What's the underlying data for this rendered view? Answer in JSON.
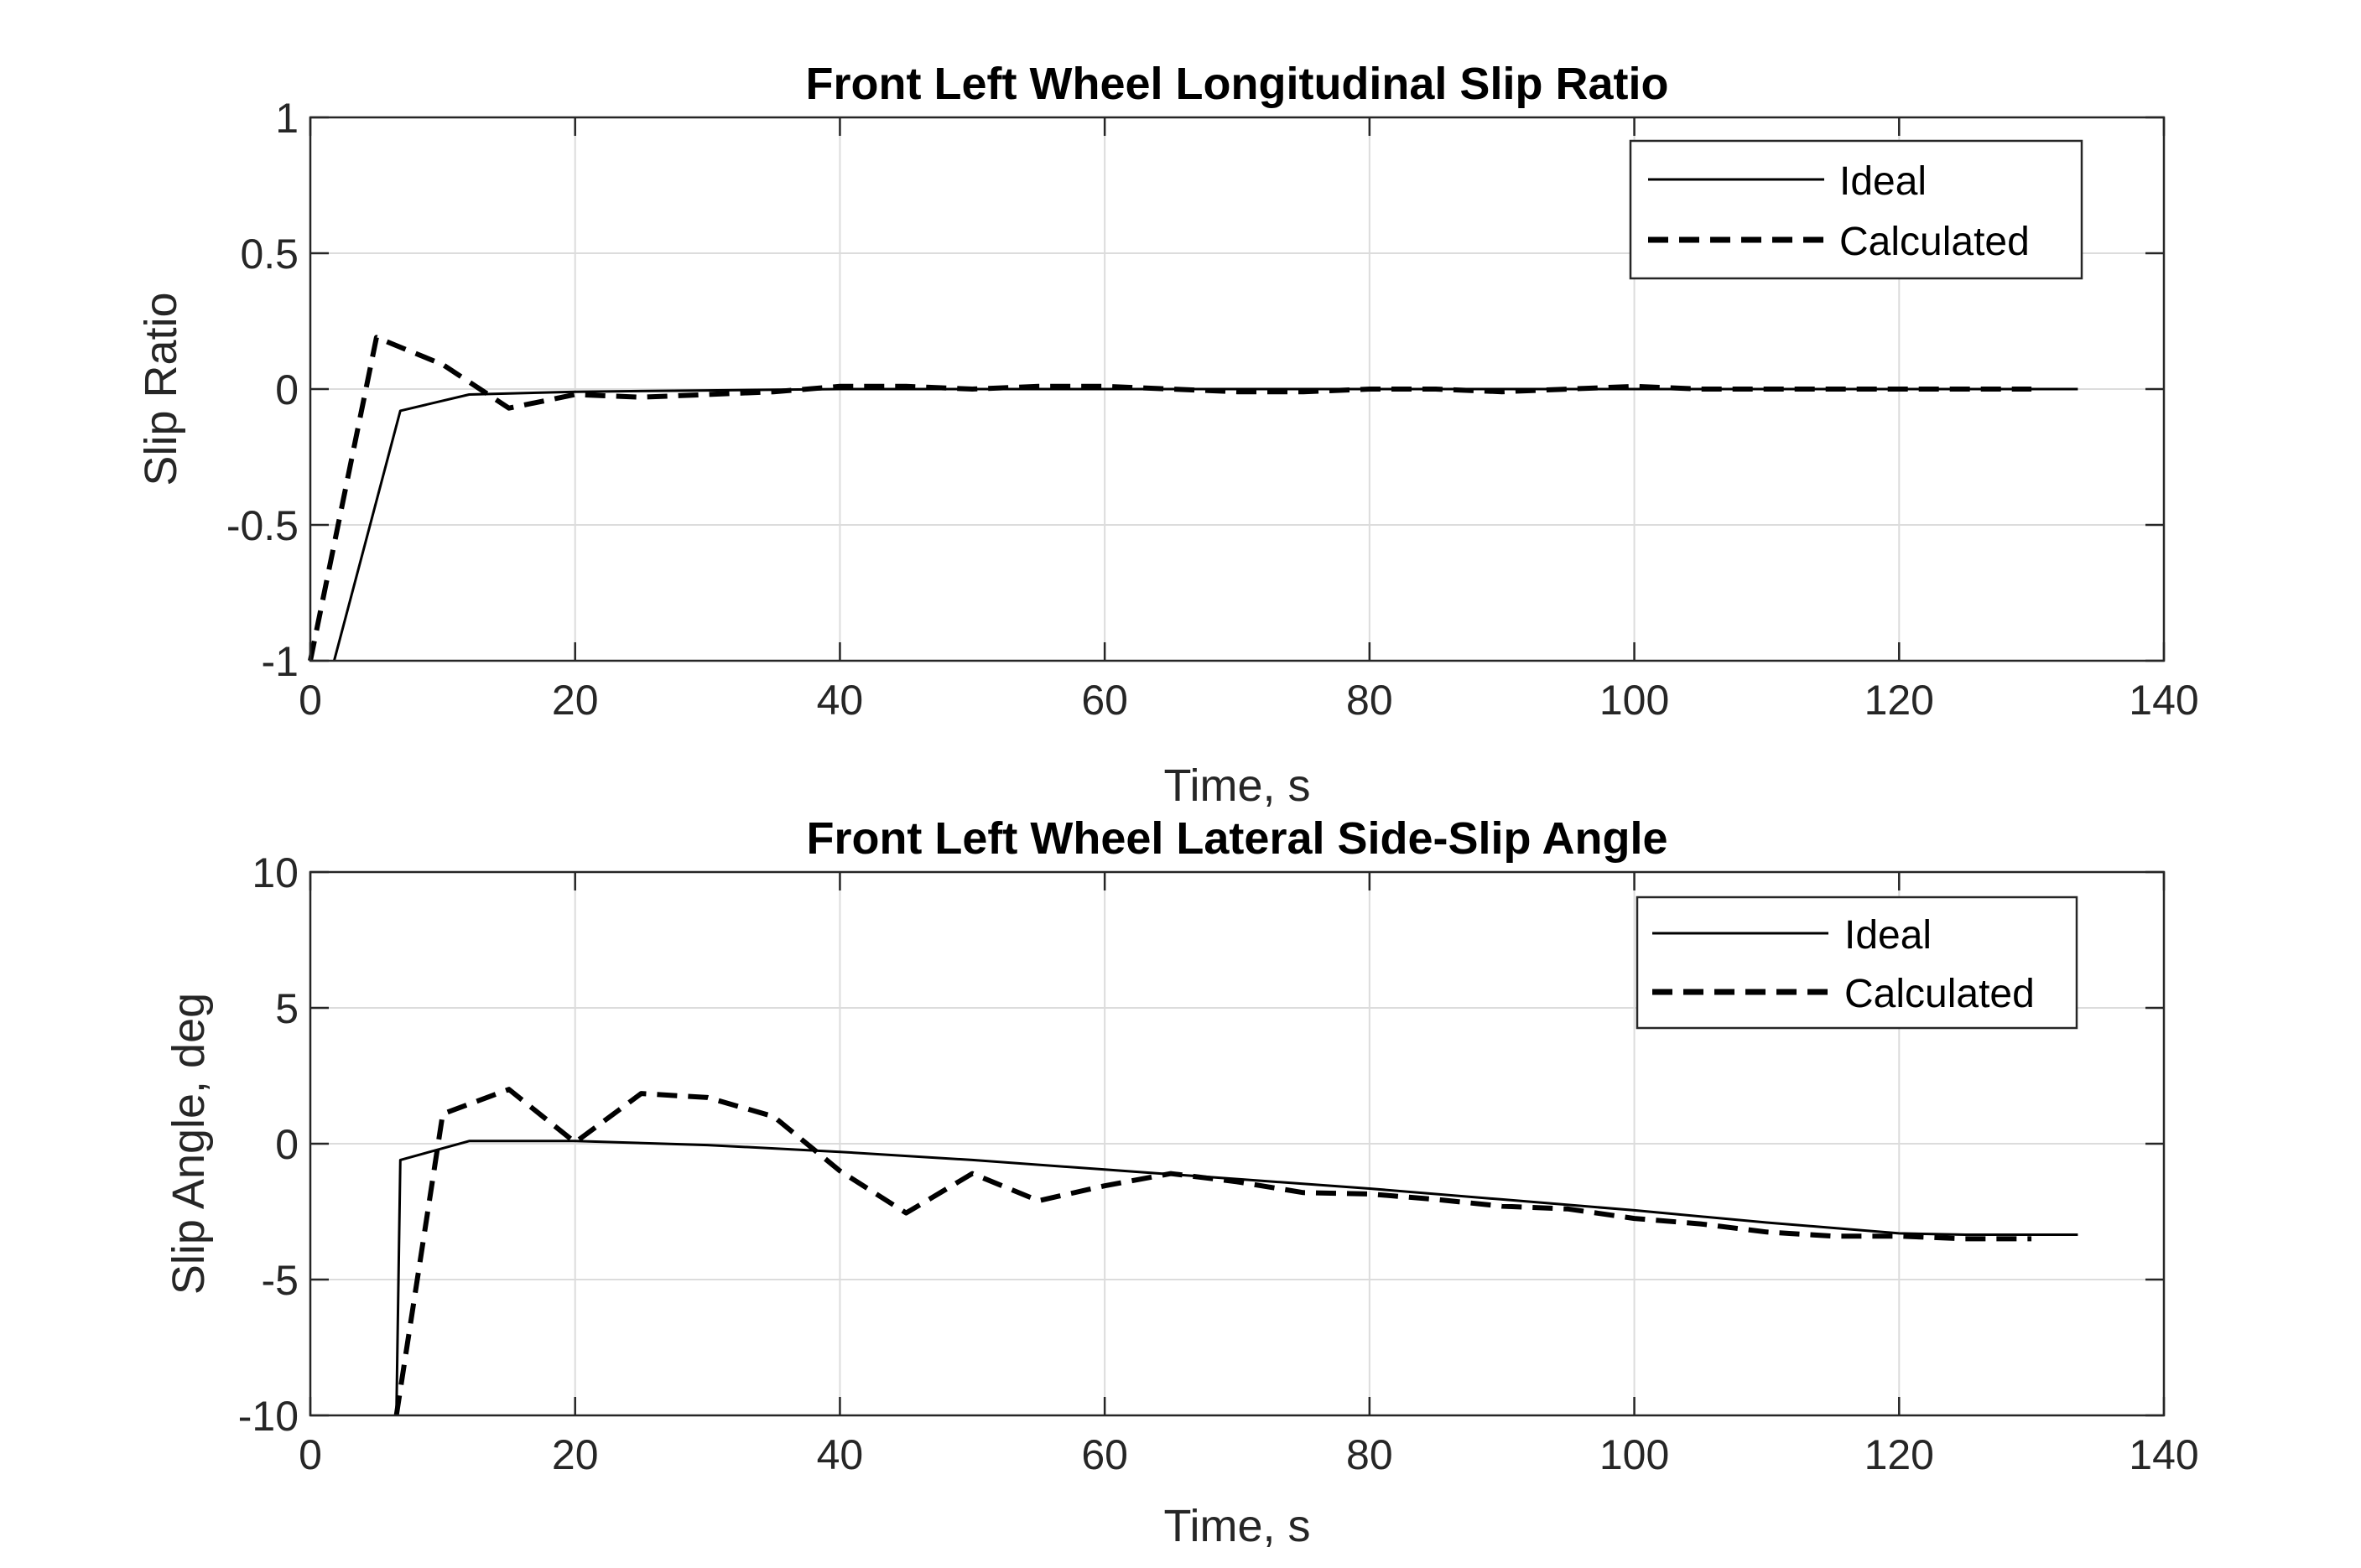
{
  "chart_data": [
    {
      "type": "line",
      "title": "Front Left Wheel Longitudinal Slip Ratio",
      "xlabel": "Time, s",
      "ylabel": "Slip Ratio",
      "xlim": [
        0,
        140
      ],
      "ylim": [
        -1,
        1
      ],
      "xticks": [
        0,
        20,
        40,
        60,
        80,
        100,
        120,
        140
      ],
      "yticks": [
        -1,
        -0.5,
        0,
        0.5,
        1
      ],
      "ytick_labels": [
        "-1",
        "-0.5",
        "0",
        "0.5",
        "1"
      ],
      "grid": true,
      "legend": "top-right",
      "series": [
        {
          "name": "Ideal",
          "style": "solid",
          "color": "#000000",
          "x": [
            1.8,
            6.8,
            12,
            20,
            30,
            40,
            50,
            60,
            70,
            80,
            90,
            100,
            110,
            120,
            130,
            133.5
          ],
          "y": [
            -1,
            -0.08,
            -0.02,
            -0.01,
            -0.005,
            0,
            0,
            0,
            0,
            0,
            0,
            0,
            0,
            0,
            0,
            0
          ]
        },
        {
          "name": "Calculated",
          "style": "dashed",
          "color": "#000000",
          "x": [
            0,
            5,
            10,
            15,
            20,
            25,
            30,
            35,
            40,
            45,
            50,
            55,
            60,
            65,
            70,
            75,
            80,
            85,
            90,
            95,
            100,
            105,
            110,
            115,
            120,
            125,
            130
          ],
          "y": [
            -1,
            0.19,
            0.09,
            -0.07,
            -0.02,
            -0.03,
            -0.02,
            -0.01,
            0.01,
            0.01,
            0,
            0.01,
            0.01,
            0,
            -0.01,
            -0.01,
            0,
            0,
            -0.01,
            0,
            0.01,
            0,
            0,
            0,
            0,
            0,
            0
          ]
        }
      ]
    },
    {
      "type": "line",
      "title": "Front Left Wheel Lateral Side-Slip Angle",
      "xlabel": "Time, s",
      "ylabel": "Slip Angle, deg",
      "xlim": [
        0,
        140
      ],
      "ylim": [
        -10,
        10
      ],
      "xticks": [
        0,
        20,
        40,
        60,
        80,
        100,
        120,
        140
      ],
      "yticks": [
        -10,
        -5,
        0,
        5,
        10
      ],
      "ytick_labels": [
        "-10",
        "-5",
        "0",
        "5",
        "10"
      ],
      "grid": true,
      "legend": "top-right",
      "series": [
        {
          "name": "Ideal",
          "style": "solid",
          "color": "#000000",
          "x": [
            6.5,
            6.8,
            12,
            17,
            20,
            30,
            40,
            50,
            60,
            70,
            80,
            90,
            100,
            110,
            120,
            125,
            133.5
          ],
          "y": [
            -10,
            -0.6,
            0.1,
            0.1,
            0.1,
            -0.05,
            -0.3,
            -0.6,
            -0.95,
            -1.3,
            -1.65,
            -2.05,
            -2.45,
            -2.9,
            -3.3,
            -3.35,
            -3.35
          ]
        },
        {
          "name": "Calculated",
          "style": "dashed",
          "color": "#000000",
          "x": [
            6.5,
            10,
            15,
            20,
            25,
            30,
            35,
            40,
            45,
            50,
            55,
            60,
            65,
            70,
            75,
            80,
            85,
            90,
            95,
            100,
            105,
            110,
            115,
            120,
            125,
            130
          ],
          "y": [
            -10,
            1.1,
            2.0,
            0.05,
            1.85,
            1.7,
            1.0,
            -1.0,
            -2.55,
            -1.1,
            -2.1,
            -1.55,
            -1.1,
            -1.4,
            -1.8,
            -1.85,
            -2.05,
            -2.3,
            -2.4,
            -2.75,
            -2.95,
            -3.25,
            -3.4,
            -3.4,
            -3.5,
            -3.5
          ]
        }
      ]
    }
  ]
}
